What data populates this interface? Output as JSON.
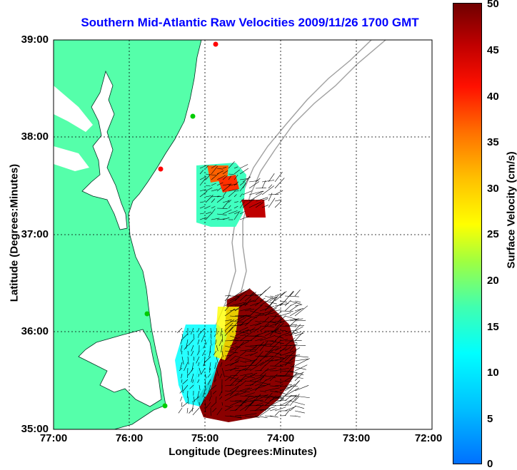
{
  "title": "Southern Mid-Atlantic Raw Velocities 2009/11/26 1700 GMT",
  "x_axis": {
    "label": "Longitude (Degrees:Minutes)",
    "ticks": [
      "77:00",
      "76:00",
      "75:00",
      "74:00",
      "73:00",
      "72:00"
    ]
  },
  "y_axis": {
    "label": "Latitude (Degrees:Minutes)",
    "ticks": [
      "39:00",
      "38:00",
      "37:00",
      "36:00",
      "35:00"
    ]
  },
  "colorbar": {
    "label": "Surface Velocity (cm/s)",
    "ticks": [
      "50",
      "45",
      "40",
      "35",
      "30",
      "25",
      "20",
      "15",
      "10",
      "5",
      "0"
    ],
    "range": [
      0,
      50
    ]
  },
  "colors": {
    "land": "#55ffaa",
    "coastline": "#000000",
    "bathymetry": "#a0a0a0",
    "title": "#0000ff",
    "site_green": "#00cc00",
    "site_red": "#ff0000"
  }
}
